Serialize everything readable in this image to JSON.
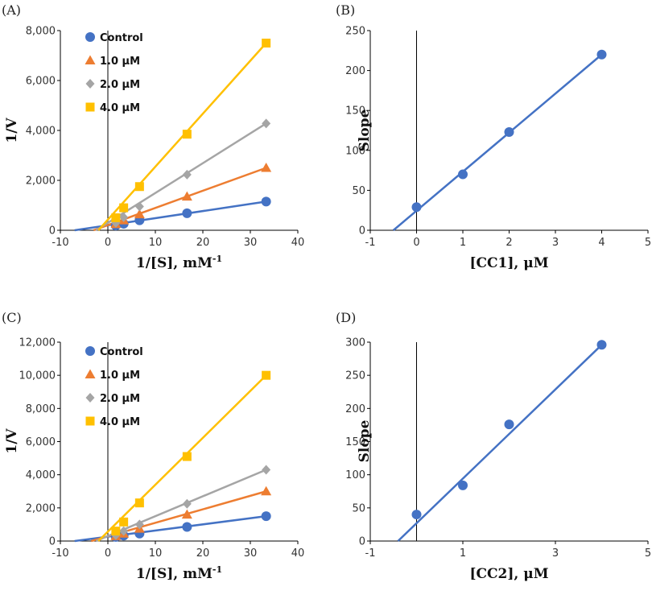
{
  "colors": {
    "control": "#4472C4",
    "c1": "#ED7D31",
    "c2": "#A5A5A5",
    "c4": "#FFC000"
  },
  "chart_data": [
    {
      "panel": "(A)",
      "type": "line",
      "xlabel": "1/[S], mM",
      "xlabel_sup": "-1",
      "ylabel": "1/V",
      "xlim": [
        -10,
        40
      ],
      "ylim": [
        0,
        8000
      ],
      "xticks": [
        -10,
        0,
        10,
        20,
        30,
        40
      ],
      "xtick_labels": [
        "-10",
        "0",
        "10",
        "20",
        "30",
        "40"
      ],
      "yticks": [
        0,
        2000,
        4000,
        6000,
        8000
      ],
      "ytick_labels": [
        "0",
        "2,000",
        "4,000",
        "6,000",
        "8,000"
      ],
      "legend": "top-left",
      "series": [
        {
          "name": "Control",
          "marker": "circle",
          "color": "#4472C4",
          "x": [
            1.67,
            3.33,
            6.67,
            16.67,
            33.33
          ],
          "y": [
            190,
            260,
            400,
            680,
            1150
          ],
          "fit": {
            "x0": -7,
            "y0": 0,
            "x1": 33.33,
            "y1": 1150
          }
        },
        {
          "name": "1.0 μM",
          "marker": "triangle",
          "color": "#ED7D31",
          "x": [
            1.67,
            3.33,
            6.67,
            16.67,
            33.33
          ],
          "y": [
            250,
            400,
            640,
            1350,
            2500
          ],
          "fit": {
            "x0": -3,
            "y0": 0,
            "x1": 33.33,
            "y1": 2500
          }
        },
        {
          "name": "2.0 μM",
          "marker": "diamond",
          "color": "#A5A5A5",
          "x": [
            1.67,
            3.33,
            6.67,
            16.67,
            33.33
          ],
          "y": [
            300,
            520,
            950,
            2230,
            4280
          ],
          "fit": {
            "x0": -2.5,
            "y0": 0,
            "x1": 33.33,
            "y1": 4280
          }
        },
        {
          "name": "4.0 μM",
          "marker": "square",
          "color": "#FFC000",
          "x": [
            1.67,
            3.33,
            6.67,
            16.67,
            33.33
          ],
          "y": [
            500,
            900,
            1750,
            3850,
            7500
          ],
          "fit": {
            "x0": -2,
            "y0": 0,
            "x1": 33.33,
            "y1": 7500
          }
        }
      ]
    },
    {
      "panel": "(B)",
      "type": "scatter",
      "xlabel": "[CC1], μM",
      "ylabel": "Slope",
      "xlim": [
        -1,
        5
      ],
      "ylim": [
        0,
        250
      ],
      "xticks": [
        -1,
        0,
        1,
        2,
        3,
        4,
        5
      ],
      "xtick_labels": [
        "-1",
        "0",
        "1",
        "2",
        "3",
        "4",
        "5"
      ],
      "yticks": [
        0,
        50,
        100,
        150,
        200,
        250
      ],
      "ytick_labels": [
        "0",
        "50",
        "100",
        "150",
        "200",
        "250"
      ],
      "series": [
        {
          "name": "Slope",
          "marker": "circle",
          "color": "#4472C4",
          "x": [
            0,
            1,
            2,
            4
          ],
          "y": [
            29,
            70,
            123,
            220
          ],
          "fit": {
            "x0": -0.5,
            "y0": 0,
            "x1": 4,
            "y1": 220
          }
        }
      ]
    },
    {
      "panel": "(C)",
      "type": "line",
      "xlabel": "1/[S], mM",
      "xlabel_sup": "-1",
      "ylabel": "1/V",
      "xlim": [
        -10,
        40
      ],
      "ylim": [
        0,
        12000
      ],
      "xticks": [
        -10,
        0,
        10,
        20,
        30,
        40
      ],
      "xtick_labels": [
        "-10",
        "0",
        "10",
        "20",
        "30",
        "40"
      ],
      "yticks": [
        0,
        2000,
        4000,
        6000,
        8000,
        10000,
        12000
      ],
      "ytick_labels": [
        "0",
        "2,000",
        "4,000",
        "6,000",
        "8,000",
        "10,000",
        "12,000"
      ],
      "legend": "top-left",
      "series": [
        {
          "name": "Control",
          "marker": "circle",
          "color": "#4472C4",
          "x": [
            1.67,
            3.33,
            6.67,
            16.67,
            33.33
          ],
          "y": [
            250,
            330,
            450,
            850,
            1500
          ],
          "fit": {
            "x0": -7,
            "y0": 0,
            "x1": 33.33,
            "y1": 1500
          }
        },
        {
          "name": "1.0 μM",
          "marker": "triangle",
          "color": "#ED7D31",
          "x": [
            1.67,
            3.33,
            6.67,
            16.67,
            33.33
          ],
          "y": [
            300,
            450,
            750,
            1600,
            3000
          ],
          "fit": {
            "x0": -3.5,
            "y0": 0,
            "x1": 33.33,
            "y1": 3000
          }
        },
        {
          "name": "2.0 μM",
          "marker": "diamond",
          "color": "#A5A5A5",
          "x": [
            1.67,
            3.33,
            6.67,
            16.67,
            33.33
          ],
          "y": [
            350,
            600,
            1000,
            2250,
            4300
          ],
          "fit": {
            "x0": -2.5,
            "y0": 0,
            "x1": 33.33,
            "y1": 4300
          }
        },
        {
          "name": "4.0 μM",
          "marker": "square",
          "color": "#FFC000",
          "x": [
            1.67,
            3.33,
            6.67,
            16.67,
            33.33
          ],
          "y": [
            600,
            1150,
            2300,
            5100,
            10000
          ],
          "fit": {
            "x0": -2,
            "y0": 0,
            "x1": 33.33,
            "y1": 10000
          }
        }
      ]
    },
    {
      "panel": "(D)",
      "type": "scatter",
      "xlabel": "[CC2], μM",
      "ylabel": "Slope",
      "xlim": [
        -1,
        5
      ],
      "ylim": [
        0,
        300
      ],
      "xticks": [
        -1,
        1,
        3,
        5
      ],
      "xtick_labels": [
        "-1",
        "1",
        "3",
        "5"
      ],
      "yticks": [
        0,
        50,
        100,
        150,
        200,
        250,
        300
      ],
      "ytick_labels": [
        "0",
        "50",
        "100",
        "150",
        "200",
        "250",
        "300"
      ],
      "series": [
        {
          "name": "Slope",
          "marker": "circle",
          "color": "#4472C4",
          "x": [
            0,
            1,
            2,
            4
          ],
          "y": [
            40,
            84,
            176,
            296
          ],
          "fit": {
            "x0": -0.4,
            "y0": 0,
            "x1": 4,
            "y1": 296
          }
        }
      ]
    }
  ]
}
